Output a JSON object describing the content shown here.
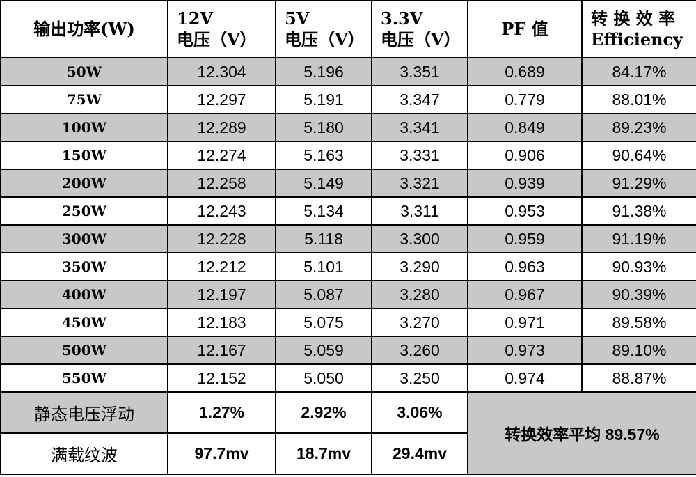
{
  "chart_data": {
    "type": "table",
    "header": {
      "output_power": "输出功率(W)",
      "v12_line1": "12V",
      "v12_line2": "电压（V）",
      "v5_line1": "5V",
      "v5_line2": "电压（V）",
      "v33_line1": "3.3V",
      "v33_line2": "电压（V）",
      "pf": "PF 值",
      "eff_line1": "转 换 效 率",
      "eff_line2": "Efficiency"
    },
    "rows": [
      {
        "load": "50W",
        "v12": "12.304",
        "v5": "5.196",
        "v33": "3.351",
        "pf": "0.689",
        "eff": "84.17%"
      },
      {
        "load": "75W",
        "v12": "12.297",
        "v5": "5.191",
        "v33": "3.347",
        "pf": "0.779",
        "eff": "88.01%"
      },
      {
        "load": "100W",
        "v12": "12.289",
        "v5": "5.180",
        "v33": "3.341",
        "pf": "0.849",
        "eff": "89.23%"
      },
      {
        "load": "150W",
        "v12": "12.274",
        "v5": "5.163",
        "v33": "3.331",
        "pf": "0.906",
        "eff": "90.64%"
      },
      {
        "load": "200W",
        "v12": "12.258",
        "v5": "5.149",
        "v33": "3.321",
        "pf": "0.939",
        "eff": "91.29%"
      },
      {
        "load": "250W",
        "v12": "12.243",
        "v5": "5.134",
        "v33": "3.311",
        "pf": "0.953",
        "eff": "91.38%"
      },
      {
        "load": "300W",
        "v12": "12.228",
        "v5": "5.118",
        "v33": "3.300",
        "pf": "0.959",
        "eff": "91.19%"
      },
      {
        "load": "350W",
        "v12": "12.212",
        "v5": "5.101",
        "v33": "3.290",
        "pf": "0.963",
        "eff": "90.93%"
      },
      {
        "load": "400W",
        "v12": "12.197",
        "v5": "5.087",
        "v33": "3.280",
        "pf": "0.967",
        "eff": "90.39%"
      },
      {
        "load": "450W",
        "v12": "12.183",
        "v5": "5.075",
        "v33": "3.270",
        "pf": "0.971",
        "eff": "89.58%"
      },
      {
        "load": "500W",
        "v12": "12.167",
        "v5": "5.059",
        "v33": "3.260",
        "pf": "0.973",
        "eff": "89.10%"
      },
      {
        "load": "550W",
        "v12": "12.152",
        "v5": "5.050",
        "v33": "3.250",
        "pf": "0.974",
        "eff": "88.87%"
      }
    ],
    "static_fluctuation": {
      "label": "静态电压浮动",
      "v12": "1.27%",
      "v5": "2.92%",
      "v33": "3.06%"
    },
    "full_load_ripple": {
      "label": "满载纹波",
      "v12": "97.7mv",
      "v5": "18.7mv",
      "v33": "29.4mv"
    },
    "average_efficiency": "转换效率平均 89.57%",
    "shade_color": "#c8c8c8"
  }
}
